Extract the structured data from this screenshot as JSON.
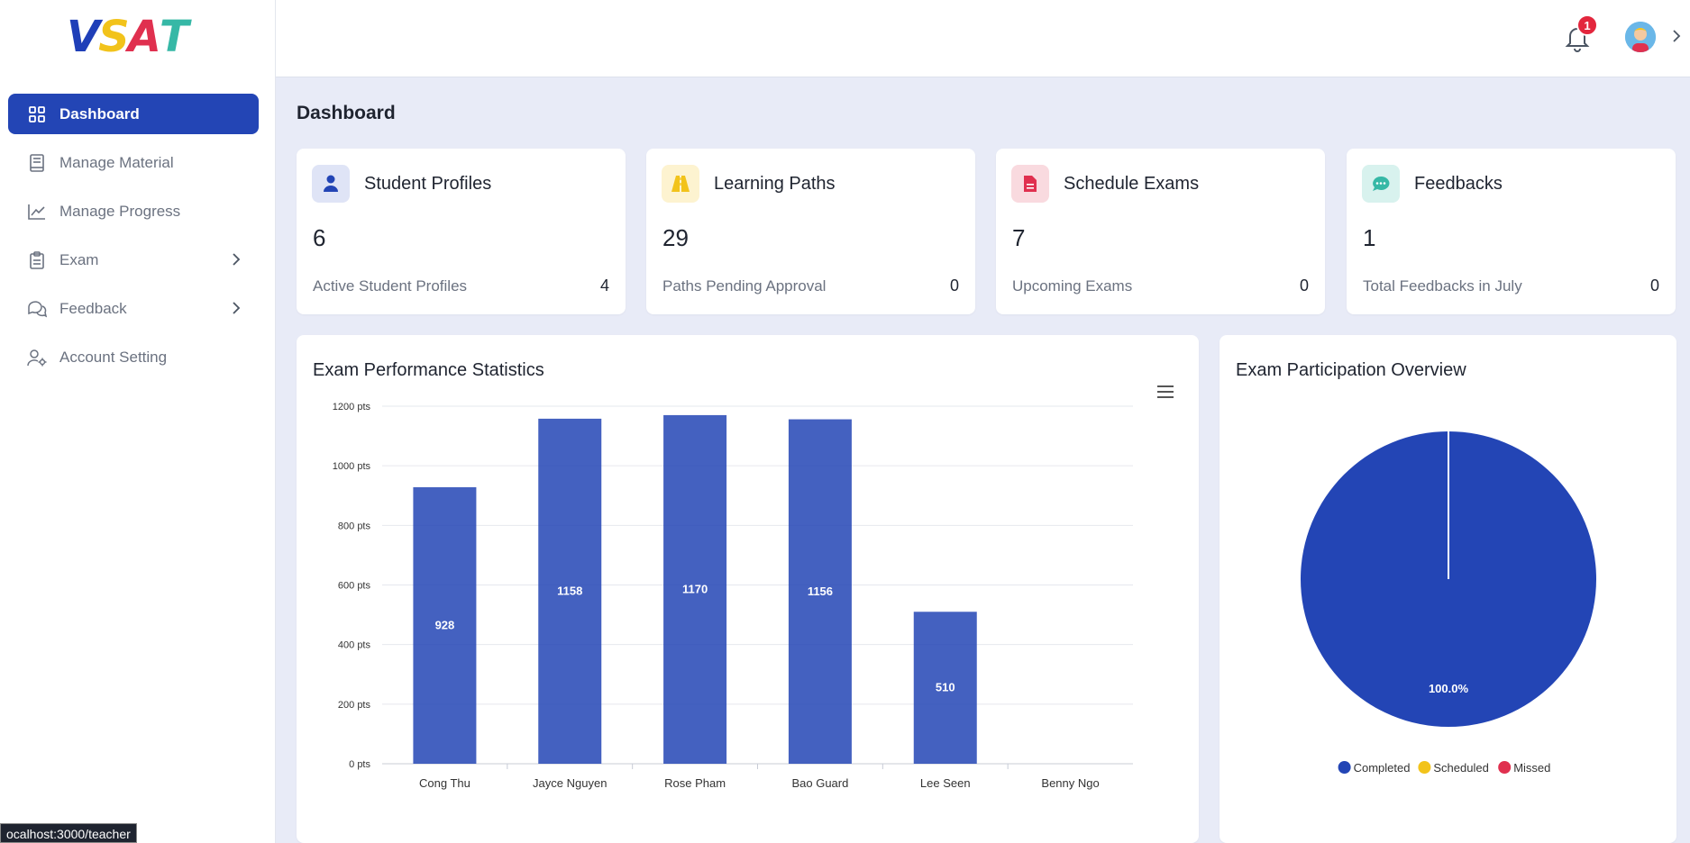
{
  "app": {
    "logo": {
      "letters": [
        "V",
        "S",
        "A",
        "T"
      ],
      "colors": [
        "#1f3fb8",
        "#f2c31b",
        "#e0304f",
        "#36b8a6"
      ]
    }
  },
  "sidebar": {
    "items": [
      {
        "label": "Dashboard",
        "icon": "grid-icon",
        "active": true
      },
      {
        "label": "Manage Material",
        "icon": "book-icon"
      },
      {
        "label": "Manage Progress",
        "icon": "chart-line-icon"
      },
      {
        "label": "Exam",
        "icon": "clipboard-icon",
        "expandable": true
      },
      {
        "label": "Feedback",
        "icon": "chat-icon",
        "expandable": true
      },
      {
        "label": "Account Setting",
        "icon": "user-gear-icon"
      }
    ]
  },
  "header": {
    "notification_count": "1",
    "notification_icon": "bell-icon"
  },
  "page": {
    "title": "Dashboard"
  },
  "stats": [
    {
      "title": "Student Profiles",
      "value": "6",
      "sub_label": "Active Student Profiles",
      "sub_value": "4",
      "icon": "user-icon",
      "icon_color": "#2345b5",
      "icon_bg": "#dfe4f6"
    },
    {
      "title": "Learning Paths",
      "value": "29",
      "sub_label": "Paths Pending Approval",
      "sub_value": "0",
      "icon": "road-icon",
      "icon_color": "#f2c31b",
      "icon_bg": "#fdf3d0"
    },
    {
      "title": "Schedule Exams",
      "value": "7",
      "sub_label": "Upcoming Exams",
      "sub_value": "0",
      "icon": "document-icon",
      "icon_color": "#e0304f",
      "icon_bg": "#f9dadf"
    },
    {
      "title": "Feedbacks",
      "value": "1",
      "sub_label": "Total Feedbacks in July",
      "sub_value": "0",
      "icon": "chat-bubble-icon",
      "icon_color": "#36b8a6",
      "icon_bg": "#d8f2ee"
    }
  ],
  "chart_data": [
    {
      "type": "bar",
      "title": "Exam Performance Statistics",
      "categories": [
        "Cong Thu",
        "Jayce Nguyen",
        "Rose Pham",
        "Bao Guard",
        "Lee Seen",
        "Benny Ngo"
      ],
      "values": [
        928,
        1158,
        1170,
        1156,
        510,
        0
      ],
      "data_labels": [
        "928",
        "1158",
        "1170",
        "1156",
        "510",
        ""
      ],
      "ylim": [
        0,
        1200
      ],
      "yticks": [
        "0 pts",
        "200 pts",
        "400 pts",
        "600 pts",
        "800 pts",
        "1000 pts",
        "1200 pts"
      ],
      "ytick_values": [
        0,
        200,
        400,
        600,
        800,
        1000,
        1200
      ],
      "grid": true,
      "color": "#2345b5"
    },
    {
      "type": "pie",
      "title": "Exam Participation Overview",
      "slices": [
        {
          "name": "Completed",
          "value": 100.0,
          "color": "#2345b5"
        },
        {
          "name": "Scheduled",
          "value": 0,
          "color": "#f2c31b"
        },
        {
          "name": "Missed",
          "value": 0,
          "color": "#e0304f"
        }
      ],
      "data_label": "100.0%",
      "legend": "bottom"
    }
  ],
  "status_url": "ocalhost:3000/teacher"
}
